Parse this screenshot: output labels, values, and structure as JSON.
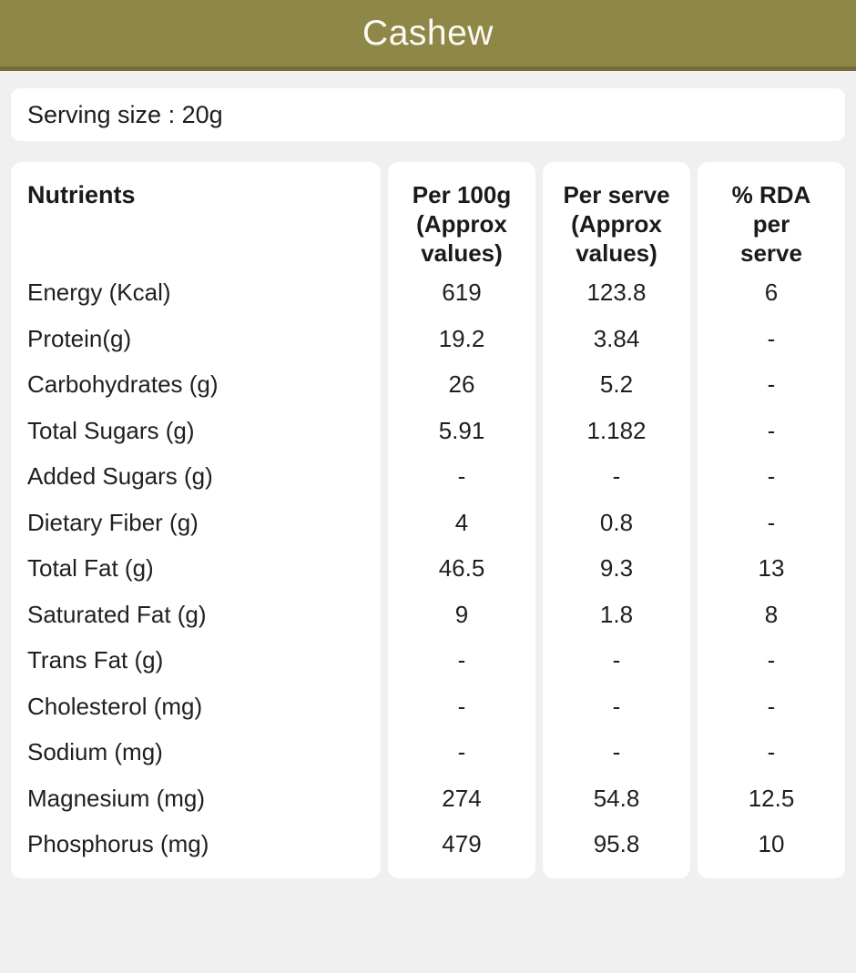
{
  "header": {
    "title": "Cashew"
  },
  "serving": {
    "label": "Serving size : 20g"
  },
  "table": {
    "headers": {
      "nutrients": "Nutrients",
      "per_100g": "Per 100g\n(Approx\nvalues)",
      "per_serve": "Per serve\n(Approx\nvalues)",
      "rda": "% RDA\nper\nserve"
    },
    "rows": [
      {
        "nutrient": "Energy (Kcal)",
        "per_100g": "619",
        "per_serve": "123.8",
        "rda": "6"
      },
      {
        "nutrient": "Protein(g)",
        "per_100g": "19.2",
        "per_serve": "3.84",
        "rda": "-"
      },
      {
        "nutrient": "Carbohydrates (g)",
        "per_100g": "26",
        "per_serve": "5.2",
        "rda": "-"
      },
      {
        "nutrient": "Total Sugars (g)",
        "per_100g": "5.91",
        "per_serve": "1.182",
        "rda": "-"
      },
      {
        "nutrient": "Added Sugars (g)",
        "per_100g": "-",
        "per_serve": "-",
        "rda": "-"
      },
      {
        "nutrient": "Dietary Fiber (g)",
        "per_100g": "4",
        "per_serve": "0.8",
        "rda": "-"
      },
      {
        "nutrient": "Total Fat (g)",
        "per_100g": "46.5",
        "per_serve": "9.3",
        "rda": "13"
      },
      {
        "nutrient": "Saturated Fat (g)",
        "per_100g": "9",
        "per_serve": "1.8",
        "rda": "8"
      },
      {
        "nutrient": "Trans Fat (g)",
        "per_100g": "-",
        "per_serve": "-",
        "rda": "-"
      },
      {
        "nutrient": "Cholesterol (mg)",
        "per_100g": "-",
        "per_serve": "-",
        "rda": "-"
      },
      {
        "nutrient": "Sodium (mg)",
        "per_100g": "-",
        "per_serve": "-",
        "rda": "-"
      },
      {
        "nutrient": "Magnesium (mg)",
        "per_100g": "274",
        "per_serve": "54.8",
        "rda": "12.5"
      },
      {
        "nutrient": "Phosphorus (mg)",
        "per_100g": "479",
        "per_serve": "95.8",
        "rda": "10"
      }
    ]
  },
  "colors": {
    "header_bg": "#8f8748",
    "header_border": "#756e3a",
    "page_bg": "#f0f0f0",
    "card_bg": "#ffffff",
    "text": "#1d1d1d",
    "title_text": "#fbfbf4"
  }
}
